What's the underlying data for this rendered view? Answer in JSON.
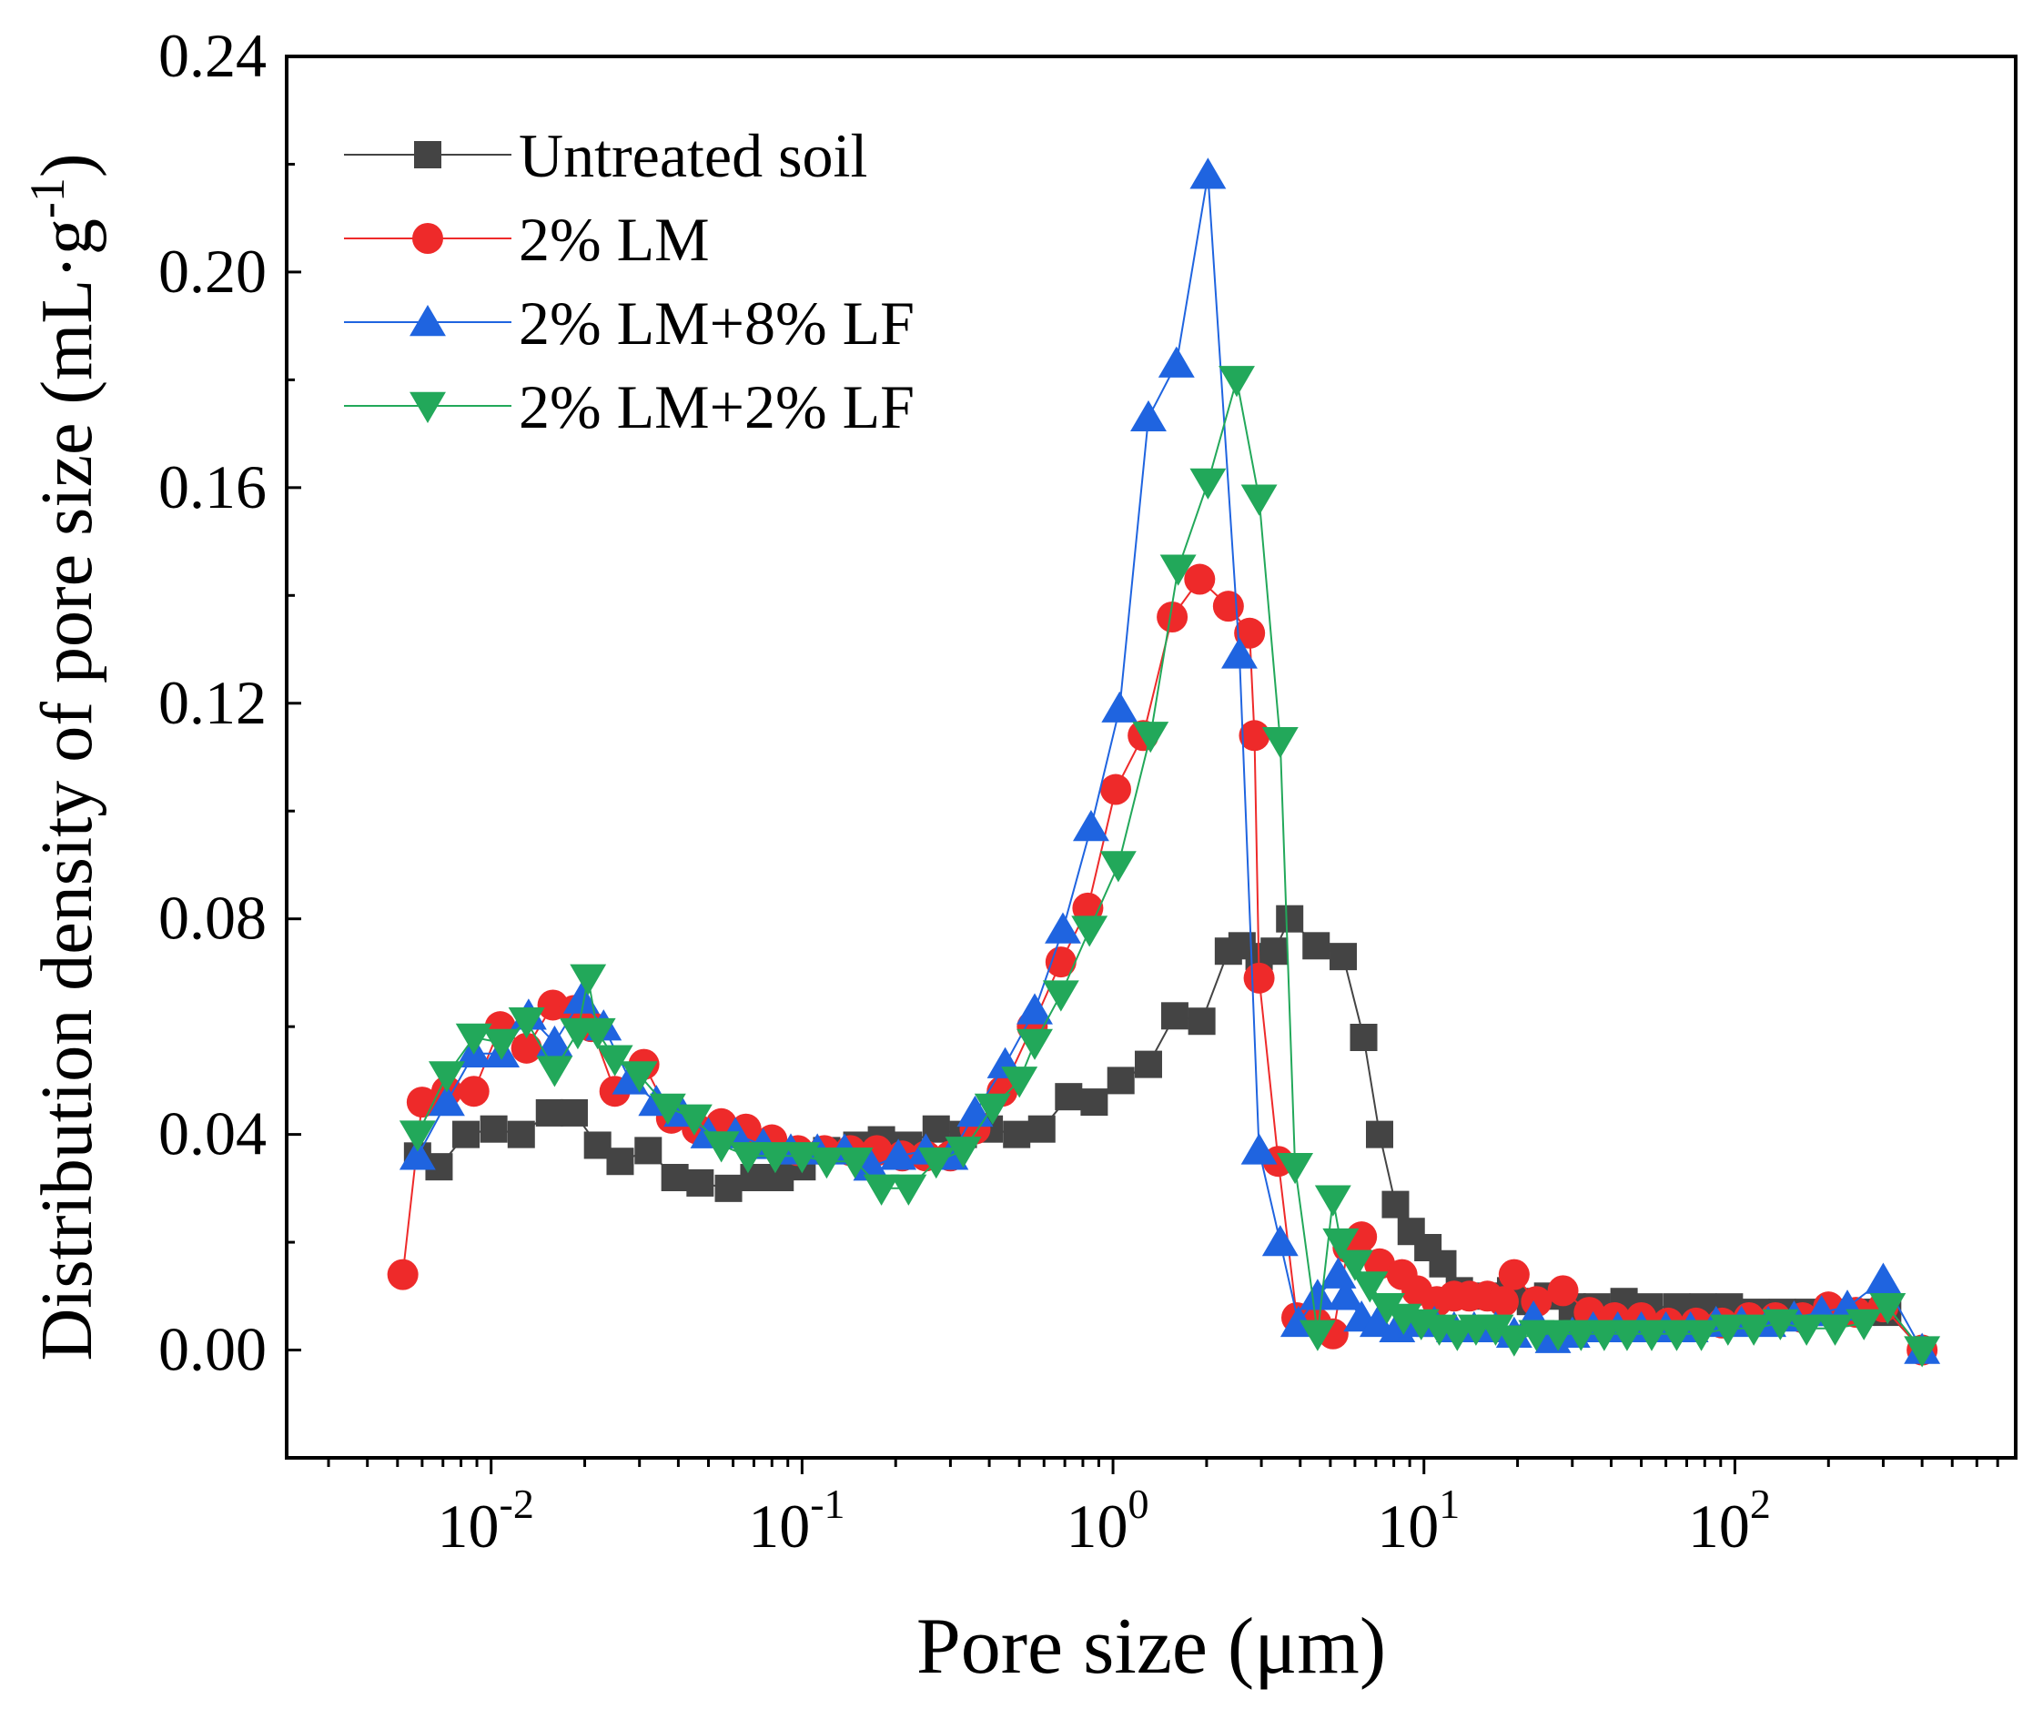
{
  "chart_data": {
    "type": "line",
    "title": "",
    "xlabel": "Pore size (μm)",
    "ylabel_main": "Distribution density of pore size (mL·g",
    "ylabel_sup": "-1",
    "ylabel_close": ")",
    "xscale": "log",
    "xlim": [
      0.0022,
      800
    ],
    "ylim": [
      -0.02,
      0.24
    ],
    "x_ticks": [
      {
        "base": "10",
        "exp": "-2",
        "value": 0.01
      },
      {
        "base": "10",
        "exp": "-1",
        "value": 0.1
      },
      {
        "base": "10",
        "exp": "0",
        "value": 1
      },
      {
        "base": "10",
        "exp": "1",
        "value": 10
      },
      {
        "base": "10",
        "exp": "2",
        "value": 100
      }
    ],
    "y_ticks": [
      {
        "label": "0.00",
        "value": 0.0
      },
      {
        "label": "0.04",
        "value": 0.04
      },
      {
        "label": "0.08",
        "value": 0.08
      },
      {
        "label": "0.12",
        "value": 0.12
      },
      {
        "label": "0.16",
        "value": 0.16
      },
      {
        "label": "0.20",
        "value": 0.2
      },
      {
        "label": "0.24",
        "value": 0.24
      }
    ],
    "legend_position": "top-left",
    "series": [
      {
        "name": "Untreated soil",
        "color": "#444444",
        "marker": "square",
        "points": [
          [
            0.0058,
            0.036
          ],
          [
            0.0068,
            0.034
          ],
          [
            0.0083,
            0.04
          ],
          [
            0.0102,
            0.041
          ],
          [
            0.0125,
            0.04
          ],
          [
            0.0154,
            0.044
          ],
          [
            0.0185,
            0.044
          ],
          [
            0.022,
            0.038
          ],
          [
            0.026,
            0.035
          ],
          [
            0.032,
            0.037
          ],
          [
            0.039,
            0.032
          ],
          [
            0.047,
            0.031
          ],
          [
            0.058,
            0.03
          ],
          [
            0.07,
            0.032
          ],
          [
            0.085,
            0.032
          ],
          [
            0.1,
            0.034
          ],
          [
            0.12,
            0.037
          ],
          [
            0.15,
            0.038
          ],
          [
            0.18,
            0.039
          ],
          [
            0.22,
            0.038
          ],
          [
            0.27,
            0.041
          ],
          [
            0.33,
            0.04
          ],
          [
            0.4,
            0.041
          ],
          [
            0.49,
            0.04
          ],
          [
            0.59,
            0.041
          ],
          [
            0.72,
            0.047
          ],
          [
            0.87,
            0.046
          ],
          [
            1.06,
            0.05
          ],
          [
            1.3,
            0.053
          ],
          [
            1.58,
            0.062
          ],
          [
            1.93,
            0.061
          ],
          [
            2.35,
            0.074
          ],
          [
            2.6,
            0.075
          ],
          [
            2.95,
            0.073
          ],
          [
            3.3,
            0.074
          ],
          [
            3.7,
            0.08
          ],
          [
            4.5,
            0.075
          ],
          [
            5.5,
            0.073
          ],
          [
            6.4,
            0.058
          ],
          [
            7.2,
            0.04
          ],
          [
            8.1,
            0.027
          ],
          [
            9.1,
            0.022
          ],
          [
            10.3,
            0.019
          ],
          [
            11.5,
            0.016
          ],
          [
            13,
            0.011
          ],
          [
            15,
            0.01
          ],
          [
            17,
            0.01
          ],
          [
            19,
            0.011
          ],
          [
            22,
            0.009
          ],
          [
            25,
            0.01
          ],
          [
            30,
            0.008
          ],
          [
            36,
            0.008
          ],
          [
            44,
            0.009
          ],
          [
            53,
            0.008
          ],
          [
            65,
            0.008
          ],
          [
            79,
            0.008
          ],
          [
            96,
            0.008
          ],
          [
            117,
            0.007
          ],
          [
            142,
            0.007
          ],
          [
            172,
            0.007
          ],
          [
            210,
            0.007
          ],
          [
            255,
            0.007
          ],
          [
            310,
            0.007
          ],
          [
            400,
            0.0
          ]
        ]
      },
      {
        "name": "2% LM",
        "color": "#ee2a2a",
        "marker": "circle",
        "points": [
          [
            0.0052,
            0.014
          ],
          [
            0.006,
            0.046
          ],
          [
            0.0072,
            0.048
          ],
          [
            0.0088,
            0.048
          ],
          [
            0.0107,
            0.06
          ],
          [
            0.013,
            0.056
          ],
          [
            0.0158,
            0.064
          ],
          [
            0.0185,
            0.063
          ],
          [
            0.021,
            0.06
          ],
          [
            0.025,
            0.048
          ],
          [
            0.031,
            0.053
          ],
          [
            0.038,
            0.043
          ],
          [
            0.046,
            0.041
          ],
          [
            0.055,
            0.042
          ],
          [
            0.066,
            0.041
          ],
          [
            0.08,
            0.039
          ],
          [
            0.097,
            0.037
          ],
          [
            0.118,
            0.037
          ],
          [
            0.143,
            0.037
          ],
          [
            0.174,
            0.037
          ],
          [
            0.21,
            0.036
          ],
          [
            0.25,
            0.036
          ],
          [
            0.3,
            0.036
          ],
          [
            0.36,
            0.041
          ],
          [
            0.44,
            0.048
          ],
          [
            0.55,
            0.06
          ],
          [
            0.68,
            0.072
          ],
          [
            0.83,
            0.082
          ],
          [
            1.02,
            0.104
          ],
          [
            1.25,
            0.114
          ],
          [
            1.55,
            0.136
          ],
          [
            1.9,
            0.143
          ],
          [
            2.35,
            0.138
          ],
          [
            2.75,
            0.133
          ],
          [
            2.85,
            0.114
          ],
          [
            2.95,
            0.069
          ],
          [
            3.4,
            0.035
          ],
          [
            3.9,
            0.006
          ],
          [
            4.5,
            0.005
          ],
          [
            5.1,
            0.003
          ],
          [
            5.7,
            0.019
          ],
          [
            6.3,
            0.021
          ],
          [
            7.2,
            0.016
          ],
          [
            8.5,
            0.014
          ],
          [
            9.5,
            0.011
          ],
          [
            11,
            0.009
          ],
          [
            12.5,
            0.01
          ],
          [
            14,
            0.01
          ],
          [
            16,
            0.01
          ],
          [
            18,
            0.009
          ],
          [
            19.5,
            0.014
          ],
          [
            23,
            0.009
          ],
          [
            28,
            0.011
          ],
          [
            34,
            0.007
          ],
          [
            41,
            0.006
          ],
          [
            50,
            0.006
          ],
          [
            61,
            0.005
          ],
          [
            75,
            0.005
          ],
          [
            91,
            0.005
          ],
          [
            111,
            0.006
          ],
          [
            135,
            0.006
          ],
          [
            165,
            0.006
          ],
          [
            200,
            0.008
          ],
          [
            245,
            0.007
          ],
          [
            300,
            0.008
          ],
          [
            400,
            0.0
          ]
        ]
      },
      {
        "name": "2% LM+8% LF",
        "color": "#1f64e0",
        "marker": "triangle-up",
        "points": [
          [
            0.0058,
            0.036
          ],
          [
            0.0072,
            0.046
          ],
          [
            0.0088,
            0.055
          ],
          [
            0.0108,
            0.055
          ],
          [
            0.0132,
            0.062
          ],
          [
            0.016,
            0.057
          ],
          [
            0.0195,
            0.065
          ],
          [
            0.023,
            0.06
          ],
          [
            0.028,
            0.05
          ],
          [
            0.034,
            0.046
          ],
          [
            0.041,
            0.044
          ],
          [
            0.05,
            0.04
          ],
          [
            0.061,
            0.04
          ],
          [
            0.075,
            0.038
          ],
          [
            0.092,
            0.037
          ],
          [
            0.112,
            0.037
          ],
          [
            0.137,
            0.037
          ],
          [
            0.167,
            0.034
          ],
          [
            0.204,
            0.036
          ],
          [
            0.25,
            0.037
          ],
          [
            0.3,
            0.036
          ],
          [
            0.36,
            0.044
          ],
          [
            0.45,
            0.053
          ],
          [
            0.56,
            0.063
          ],
          [
            0.69,
            0.078
          ],
          [
            0.85,
            0.097
          ],
          [
            1.05,
            0.119
          ],
          [
            1.3,
            0.173
          ],
          [
            1.6,
            0.183
          ],
          [
            2.02,
            0.218
          ],
          [
            2.55,
            0.129
          ],
          [
            2.95,
            0.037
          ],
          [
            3.45,
            0.02
          ],
          [
            3.95,
            0.005
          ],
          [
            4.55,
            0.01
          ],
          [
            5.3,
            0.014
          ],
          [
            5.6,
            0.01
          ],
          [
            6.3,
            0.006
          ],
          [
            7.1,
            0.005
          ],
          [
            8.2,
            0.004
          ],
          [
            9.4,
            0.005
          ],
          [
            10.8,
            0.005
          ],
          [
            12.5,
            0.004
          ],
          [
            14.5,
            0.004
          ],
          [
            17,
            0.004
          ],
          [
            19.5,
            0.003
          ],
          [
            22.5,
            0.006
          ],
          [
            26,
            0.002
          ],
          [
            30,
            0.003
          ],
          [
            35,
            0.004
          ],
          [
            42,
            0.004
          ],
          [
            50,
            0.004
          ],
          [
            60,
            0.004
          ],
          [
            72,
            0.004
          ],
          [
            87,
            0.005
          ],
          [
            105,
            0.005
          ],
          [
            128,
            0.005
          ],
          [
            155,
            0.006
          ],
          [
            190,
            0.007
          ],
          [
            230,
            0.008
          ],
          [
            300,
            0.013
          ],
          [
            400,
            0.0
          ]
        ]
      },
      {
        "name": "2% LM+2% LF",
        "color": "#22a85a",
        "marker": "triangle-down",
        "points": [
          [
            0.0058,
            0.04
          ],
          [
            0.0072,
            0.051
          ],
          [
            0.0088,
            0.058
          ],
          [
            0.0108,
            0.057
          ],
          [
            0.013,
            0.061
          ],
          [
            0.016,
            0.052
          ],
          [
            0.019,
            0.059
          ],
          [
            0.0205,
            0.069
          ],
          [
            0.022,
            0.059
          ],
          [
            0.025,
            0.054
          ],
          [
            0.03,
            0.051
          ],
          [
            0.037,
            0.045
          ],
          [
            0.045,
            0.043
          ],
          [
            0.055,
            0.038
          ],
          [
            0.067,
            0.036
          ],
          [
            0.082,
            0.036
          ],
          [
            0.1,
            0.036
          ],
          [
            0.12,
            0.035
          ],
          [
            0.148,
            0.035
          ],
          [
            0.18,
            0.03
          ],
          [
            0.22,
            0.03
          ],
          [
            0.27,
            0.035
          ],
          [
            0.33,
            0.037
          ],
          [
            0.41,
            0.045
          ],
          [
            0.5,
            0.05
          ],
          [
            0.56,
            0.057
          ],
          [
            0.68,
            0.066
          ],
          [
            0.84,
            0.078
          ],
          [
            1.04,
            0.09
          ],
          [
            1.32,
            0.114
          ],
          [
            1.62,
            0.145
          ],
          [
            2.02,
            0.161
          ],
          [
            2.5,
            0.18
          ],
          [
            2.95,
            0.158
          ],
          [
            3.45,
            0.113
          ],
          [
            3.85,
            0.034
          ],
          [
            4.55,
            0.003
          ],
          [
            5.1,
            0.028
          ],
          [
            5.4,
            0.02
          ],
          [
            6.0,
            0.016
          ],
          [
            6.7,
            0.012
          ],
          [
            7.6,
            0.008
          ],
          [
            8.6,
            0.006
          ],
          [
            9.8,
            0.005
          ],
          [
            11.2,
            0.004
          ],
          [
            12.8,
            0.003
          ],
          [
            14.7,
            0.004
          ],
          [
            17,
            0.004
          ],
          [
            19.5,
            0.002
          ],
          [
            23,
            0.003
          ],
          [
            27,
            0.003
          ],
          [
            32,
            0.003
          ],
          [
            38,
            0.003
          ],
          [
            45,
            0.003
          ],
          [
            54,
            0.003
          ],
          [
            65,
            0.003
          ],
          [
            78,
            0.003
          ],
          [
            95,
            0.004
          ],
          [
            115,
            0.004
          ],
          [
            140,
            0.005
          ],
          [
            170,
            0.004
          ],
          [
            210,
            0.004
          ],
          [
            260,
            0.005
          ],
          [
            310,
            0.008
          ],
          [
            400,
            0.0
          ]
        ]
      }
    ]
  }
}
